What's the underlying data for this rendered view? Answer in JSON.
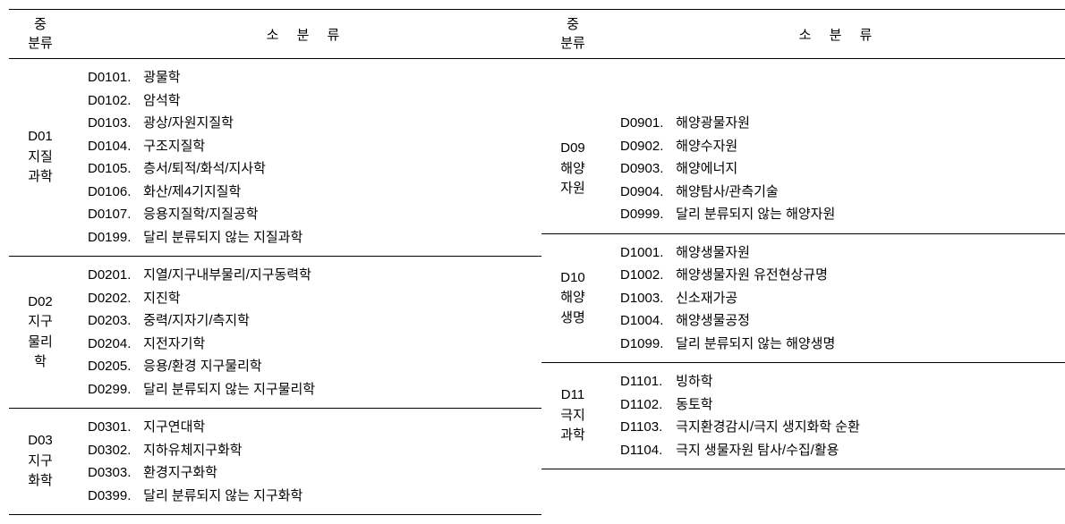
{
  "headers": {
    "major": "중\n분류",
    "sub": "소 분 류"
  },
  "left": [
    {
      "code": "D01",
      "label": "지질\n과학",
      "items": [
        {
          "code": "D0101",
          "text": "광물학"
        },
        {
          "code": "D0102",
          "text": "암석학"
        },
        {
          "code": "D0103",
          "text": "광상/자원지질학"
        },
        {
          "code": "D0104",
          "text": "구조지질학"
        },
        {
          "code": "D0105",
          "text": "층서/퇴적/화석/지사학"
        },
        {
          "code": "D0106",
          "text": "화산/제4기지질학"
        },
        {
          "code": "D0107",
          "text": "응용지질학/지질공학"
        },
        {
          "code": "D0199",
          "text": "달리 분류되지 않는 지질과학"
        }
      ]
    },
    {
      "code": "D02",
      "label": "지구\n물리\n학",
      "items": [
        {
          "code": "D0201",
          "text": "지열/지구내부물리/지구동력학"
        },
        {
          "code": "D0202",
          "text": "지진학"
        },
        {
          "code": "D0203",
          "text": "중력/지자기/측지학"
        },
        {
          "code": "D0204",
          "text": "지전자기학"
        },
        {
          "code": "D0205",
          "text": "응용/환경 지구물리학"
        },
        {
          "code": "D0299",
          "text": "달리 분류되지 않는 지구물리학"
        }
      ]
    },
    {
      "code": "D03",
      "label": "지구\n화학",
      "items": [
        {
          "code": "D0301",
          "text": "지구연대학"
        },
        {
          "code": "D0302",
          "text": "지하유체지구화학"
        },
        {
          "code": "D0303",
          "text": "환경지구화학"
        },
        {
          "code": "D0399",
          "text": "달리 분류되지 않는 지구화학"
        }
      ]
    }
  ],
  "right": [
    {
      "code": "D09",
      "label": "해양\n자원",
      "items": [
        {
          "code": "D0901",
          "text": "해양광물자원"
        },
        {
          "code": "D0902",
          "text": "해양수자원"
        },
        {
          "code": "D0903",
          "text": "해양에너지"
        },
        {
          "code": "D0904",
          "text": "해양탐사/관측기술"
        },
        {
          "code": "D0999",
          "text": "달리 분류되지 않는 해양자원"
        }
      ]
    },
    {
      "code": "D10",
      "label": "해양\n생명",
      "items": [
        {
          "code": "D1001",
          "text": "해양생물자원"
        },
        {
          "code": "D1002",
          "text": "해양생물자원 유전현상규명"
        },
        {
          "code": "D1003",
          "text": "신소재가공"
        },
        {
          "code": "D1004",
          "text": "해양생물공정"
        },
        {
          "code": "D1099",
          "text": "달리 분류되지 않는 해양생명"
        }
      ]
    },
    {
      "code": "D11",
      "label": "극지\n과학",
      "items": [
        {
          "code": "D1101",
          "text": "빙하학"
        },
        {
          "code": "D1102",
          "text": "동토학"
        },
        {
          "code": "D1103",
          "text": "극지환경감시/극지 생지화학 순환"
        },
        {
          "code": "D1104",
          "text": "극지 생물자원 탐사/수집/활용"
        }
      ]
    }
  ]
}
